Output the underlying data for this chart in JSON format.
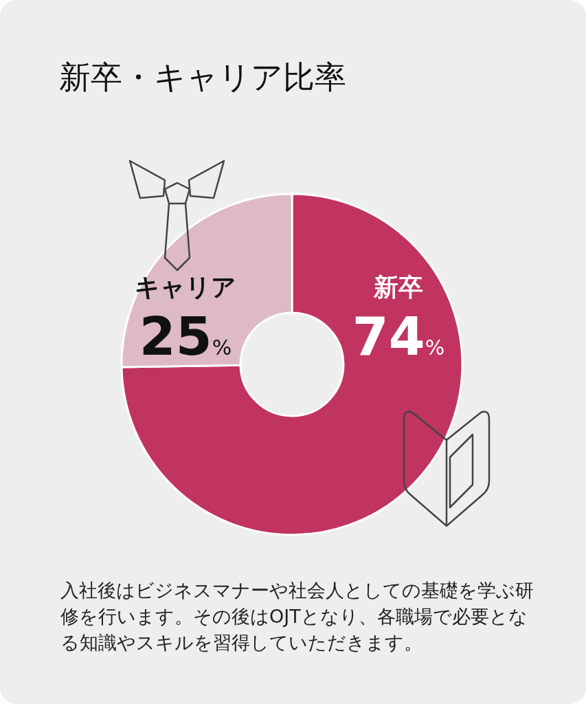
{
  "chart_data": {
    "type": "donut",
    "title": "新卒・キャリア比率",
    "categories": [
      "新卒",
      "キャリア"
    ],
    "values": [
      74,
      25
    ],
    "colors": [
      "#c1345f",
      "#ddbac6"
    ],
    "value_labels": [
      "74%",
      "25%"
    ],
    "annotations": [
      "入社後はビジネスマナーや社会人としての基礎を学ぶ研修を行います。その後はOJTとなり、各職場で必要となる知識やスキルを習得していただきます。"
    ]
  }
}
